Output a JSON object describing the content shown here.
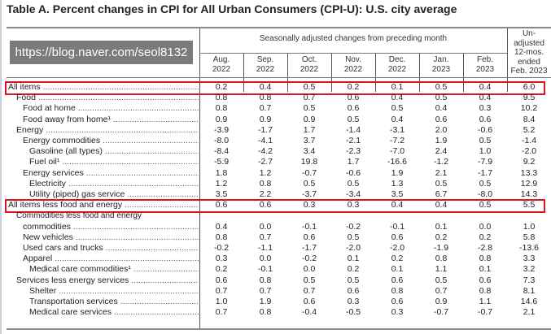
{
  "title": "Table A. Percent changes in CPI for All Urban Consumers (CPI-U): U.S. city average",
  "header": {
    "group": "Seasonally adjusted changes from preceding month",
    "months": [
      [
        "Aug.",
        "2022"
      ],
      [
        "Sep.",
        "2022"
      ],
      [
        "Oct.",
        "2022"
      ],
      [
        "Nov.",
        "2022"
      ],
      [
        "Dec.",
        "2022"
      ],
      [
        "Jan.",
        "2023"
      ],
      [
        "Feb.",
        "2023"
      ]
    ],
    "last": [
      "Un-",
      "adjusted",
      "12-mos.",
      "ended",
      "Feb. 2023"
    ]
  },
  "rows": [
    {
      "label": "All items",
      "indent": 0,
      "values": [
        "0.2",
        "0.4",
        "0.5",
        "0.2",
        "0.1",
        "0.5",
        "0.4",
        "6.0"
      ],
      "highlight": true
    },
    {
      "label": "Food",
      "indent": 1,
      "values": [
        "0.8",
        "0.8",
        "0.7",
        "0.6",
        "0.4",
        "0.5",
        "0.4",
        "9.5"
      ]
    },
    {
      "label": "Food at home",
      "indent": 2,
      "values": [
        "0.8",
        "0.7",
        "0.5",
        "0.6",
        "0.5",
        "0.4",
        "0.3",
        "10.2"
      ]
    },
    {
      "label": "Food away from home¹",
      "indent": 2,
      "values": [
        "0.9",
        "0.9",
        "0.9",
        "0.5",
        "0.4",
        "0.6",
        "0.6",
        "8.4"
      ]
    },
    {
      "label": "Energy",
      "indent": 1,
      "values": [
        "-3.9",
        "-1.7",
        "1.7",
        "-1.4",
        "-3.1",
        "2.0",
        "-0.6",
        "5.2"
      ]
    },
    {
      "label": "Energy commodities",
      "indent": 2,
      "values": [
        "-8.0",
        "-4.1",
        "3.7",
        "-2.1",
        "-7.2",
        "1.9",
        "0.5",
        "-1.4"
      ]
    },
    {
      "label": "Gasoline (all types)",
      "indent": 3,
      "values": [
        "-8.4",
        "-4.2",
        "3.4",
        "-2.3",
        "-7.0",
        "2.4",
        "1.0",
        "-2.0"
      ]
    },
    {
      "label": "Fuel oil¹",
      "indent": 3,
      "values": [
        "-5.9",
        "-2.7",
        "19.8",
        "1.7",
        "-16.6",
        "-1.2",
        "-7.9",
        "9.2"
      ]
    },
    {
      "label": "Energy services",
      "indent": 2,
      "values": [
        "1.8",
        "1.2",
        "-0.7",
        "-0.6",
        "1.9",
        "2.1",
        "-1.7",
        "13.3"
      ]
    },
    {
      "label": "Electricity",
      "indent": 3,
      "values": [
        "1.2",
        "0.8",
        "0.5",
        "0.5",
        "1.3",
        "0.5",
        "0.5",
        "12.9"
      ]
    },
    {
      "label": "Utility (piped) gas service",
      "indent": 3,
      "values": [
        "3.5",
        "2.2",
        "-3.7",
        "-3.4",
        "3.5",
        "6.7",
        "-8.0",
        "14.3"
      ]
    },
    {
      "label": "All items less food and energy",
      "indent": 0,
      "values": [
        "0.6",
        "0.6",
        "0.3",
        "0.3",
        "0.4",
        "0.4",
        "0.5",
        "5.5"
      ],
      "highlight": true
    },
    {
      "label": "Commodities less food and energy",
      "indent": 1,
      "values": [],
      "nodots": true
    },
    {
      "label": "commodities",
      "indent": 2,
      "values": [
        "0.4",
        "0.0",
        "-0.1",
        "-0.2",
        "-0.1",
        "0.1",
        "0.0",
        "1.0"
      ]
    },
    {
      "label": "New vehicles",
      "indent": 2,
      "values": [
        "0.8",
        "0.7",
        "0.6",
        "0.5",
        "0.6",
        "0.2",
        "0.2",
        "5.8"
      ]
    },
    {
      "label": "Used cars and trucks",
      "indent": 2,
      "values": [
        "-0.2",
        "-1.1",
        "-1.7",
        "-2.0",
        "-2.0",
        "-1.9",
        "-2.8",
        "-13.6"
      ]
    },
    {
      "label": "Apparel",
      "indent": 2,
      "values": [
        "0.3",
        "0.0",
        "-0.2",
        "0.1",
        "0.2",
        "0.8",
        "0.8",
        "3.3"
      ]
    },
    {
      "label": "Medical care commodities¹",
      "indent": 3,
      "values": [
        "0.2",
        "-0.1",
        "0.0",
        "0.2",
        "0.1",
        "1.1",
        "0.1",
        "3.2"
      ]
    },
    {
      "label": "Services less energy services",
      "indent": 1,
      "values": [
        "0.6",
        "0.8",
        "0.5",
        "0.5",
        "0.6",
        "0.5",
        "0.6",
        "7.3"
      ]
    },
    {
      "label": "Shelter",
      "indent": 3,
      "values": [
        "0.7",
        "0.7",
        "0.7",
        "0.6",
        "0.8",
        "0.7",
        "0.8",
        "8.1"
      ]
    },
    {
      "label": "Transportation services",
      "indent": 3,
      "values": [
        "1.0",
        "1.9",
        "0.6",
        "0.3",
        "0.6",
        "0.9",
        "1.1",
        "14.6"
      ]
    },
    {
      "label": "Medical care services",
      "indent": 3,
      "values": [
        "0.7",
        "0.8",
        "-0.4",
        "-0.5",
        "0.3",
        "-0.7",
        "-0.7",
        "2.1"
      ]
    }
  ],
  "watermark": "https://blog.naver.com/seol8132",
  "colors": {
    "highlight": "#e0141e"
  }
}
